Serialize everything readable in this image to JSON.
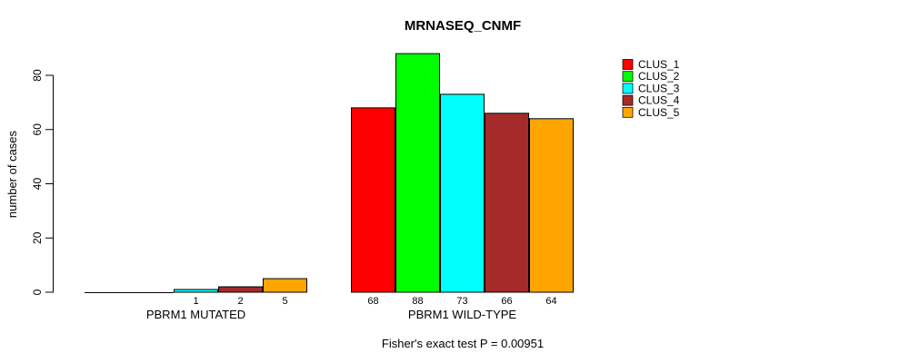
{
  "chart_data": {
    "type": "bar",
    "title": "MRNASEQ_CNMF",
    "ylabel": "number of cases",
    "xlabel": "",
    "groups": [
      "PBRM1 MUTATED",
      "PBRM1 WILD-TYPE"
    ],
    "series": [
      {
        "name": "CLUS_1",
        "color": "#ff0000",
        "values": [
          0,
          68
        ]
      },
      {
        "name": "CLUS_2",
        "color": "#00ff00",
        "values": [
          0,
          88
        ]
      },
      {
        "name": "CLUS_3",
        "color": "#00ffff",
        "values": [
          1,
          73
        ]
      },
      {
        "name": "CLUS_4",
        "color": "#a52a2a",
        "values": [
          2,
          66
        ]
      },
      {
        "name": "CLUS_5",
        "color": "#ffa500",
        "values": [
          5,
          64
        ]
      }
    ],
    "bar_value_labels": [
      [
        "",
        "",
        "1",
        "2",
        "5"
      ],
      [
        "68",
        "88",
        "73",
        "66",
        "64"
      ]
    ],
    "yticks": [
      0,
      20,
      40,
      60,
      80
    ],
    "ylim": [
      0,
      88
    ],
    "grid": false,
    "legend_position": "right",
    "legend": [
      "CLUS_1",
      "CLUS_2",
      "CLUS_3",
      "CLUS_4",
      "CLUS_5"
    ],
    "annotation": "Fisher's exact test P = 0.00951",
    "bar_border_color": "#000000",
    "axis_color": "#000000"
  }
}
